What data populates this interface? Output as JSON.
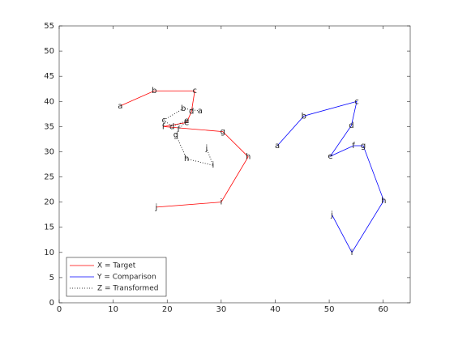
{
  "chart_data": {
    "type": "line",
    "point_labels": [
      "a",
      "b",
      "c",
      "d",
      "e",
      "f",
      "g",
      "h",
      "i",
      "j"
    ],
    "series": [
      {
        "name": "X = Target",
        "color": "#ff0000",
        "dash": "solid",
        "x": [
          11.3,
          17.6,
          25.1,
          24.5,
          23.6,
          19.3,
          30.3,
          35,
          30,
          18
        ],
        "y": [
          39.1,
          42.1,
          42.1,
          38,
          35.8,
          35.0,
          34.0,
          29,
          20,
          19
        ]
      },
      {
        "name": "Y = Comparison",
        "color": "#0000ff",
        "dash": "solid",
        "x": [
          40.4,
          45.3,
          55.1,
          54.1,
          50.2,
          54.5,
          56.3,
          60.1,
          54.2,
          50.5
        ],
        "y": [
          31.2,
          37.1,
          40.0,
          35.2,
          29.1,
          31.2,
          31.2,
          20.3,
          10.0,
          17.5
        ]
      },
      {
        "name": "Z = Transformed",
        "color": "#000000",
        "dash": "dotted",
        "x": [
          26.1,
          23,
          19.4,
          20.9,
          23.6,
          22.1,
          21.6,
          23.6,
          28.5,
          27.3
        ],
        "y": [
          38.1,
          38.6,
          36.3,
          35.0,
          36.2,
          34.4,
          33.4,
          28.6,
          27.3,
          30.7
        ]
      }
    ],
    "xlim": [
      0,
      65
    ],
    "ylim": [
      0,
      55
    ],
    "xticks": [
      0,
      10,
      20,
      30,
      40,
      50,
      60
    ],
    "yticks": [
      0,
      5,
      10,
      15,
      20,
      25,
      30,
      35,
      40,
      45,
      50,
      55
    ],
    "legend": "lower-left"
  }
}
